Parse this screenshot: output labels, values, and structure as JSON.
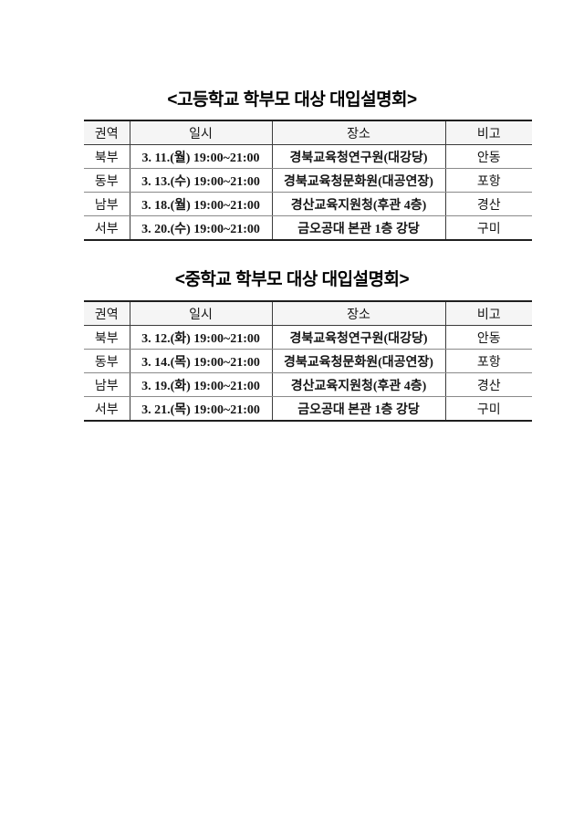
{
  "colors": {
    "text": "#151515",
    "border_heavy": "#1f1f1f",
    "border_light": "#8a8a8a",
    "border_inner": "#3c3c3c",
    "header_bg": "#f5f5f5",
    "page_bg": "#ffffff"
  },
  "tables": [
    {
      "title": "<고등학교 학부모 대상 대입설명회>",
      "headers": [
        "권역",
        "일시",
        "장소",
        "비고"
      ],
      "rows": [
        [
          "북부",
          "3. 11.(월) 19:00~21:00",
          "경북교육청연구원(대강당)",
          "안동"
        ],
        [
          "동부",
          "3. 13.(수) 19:00~21:00",
          "경북교육청문화원(대공연장)",
          "포항"
        ],
        [
          "남부",
          "3. 18.(월) 19:00~21:00",
          "경산교육지원청(후관 4층)",
          "경산"
        ],
        [
          "서부",
          "3. 20.(수) 19:00~21:00",
          "금오공대 본관 1층 강당",
          "구미"
        ]
      ]
    },
    {
      "title": "<중학교 학부모 대상 대입설명회>",
      "headers": [
        "권역",
        "일시",
        "장소",
        "비고"
      ],
      "rows": [
        [
          "북부",
          "3. 12.(화) 19:00~21:00",
          "경북교육청연구원(대강당)",
          "안동"
        ],
        [
          "동부",
          "3. 14.(목) 19:00~21:00",
          "경북교육청문화원(대공연장)",
          "포항"
        ],
        [
          "남부",
          "3. 19.(화) 19:00~21:00",
          "경산교육지원청(후관 4층)",
          "경산"
        ],
        [
          "서부",
          "3. 21.(목) 19:00~21:00",
          "금오공대 본관 1층 강당",
          "구미"
        ]
      ]
    }
  ]
}
